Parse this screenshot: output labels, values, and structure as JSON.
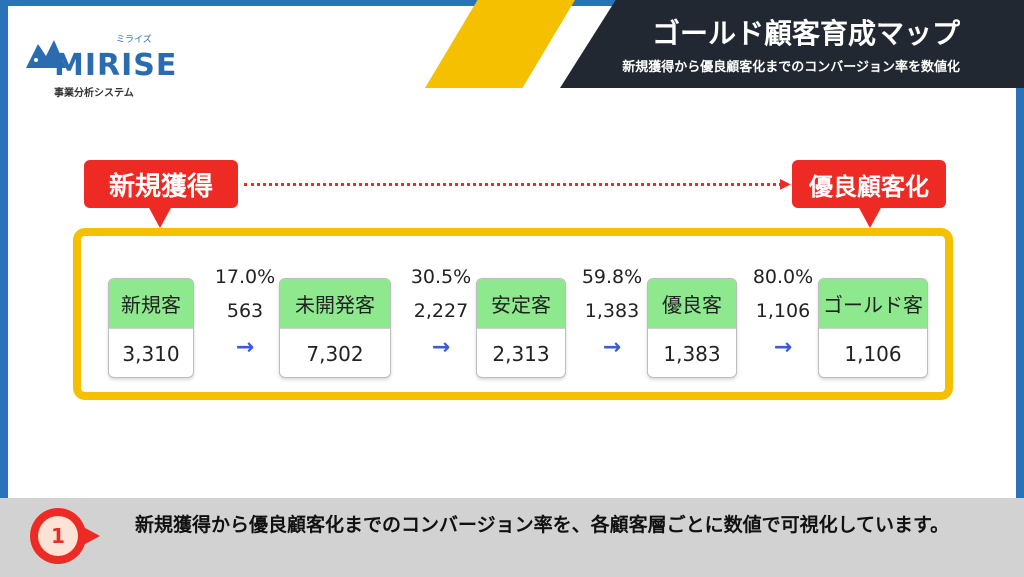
{
  "logo": {
    "name": "MIRISE",
    "kana": "ミライズ",
    "subtitle": "事業分析システム"
  },
  "header": {
    "title": "ゴールド顧客育成マップ",
    "subtitle": "新規獲得から優良顧客化までのコンバージョン率を数値化"
  },
  "callouts": {
    "start": "新規獲得",
    "end": "優良顧客化"
  },
  "stages": [
    {
      "label": "新規客",
      "value": "3,310"
    },
    {
      "label": "未開発客",
      "value": "7,302"
    },
    {
      "label": "安定客",
      "value": "2,313"
    },
    {
      "label": "優良客",
      "value": "1,383"
    },
    {
      "label": "ゴールド客",
      "value": "1,106"
    }
  ],
  "conversions": [
    {
      "rate": "17.0%",
      "count": "563",
      "arrow": "→"
    },
    {
      "rate": "30.5%",
      "count": "2,227",
      "arrow": "→"
    },
    {
      "rate": "59.8%",
      "count": "1,383",
      "arrow": "→"
    },
    {
      "rate": "80.0%",
      "count": "1,106",
      "arrow": "→"
    }
  ],
  "footer": {
    "badge_number": "1",
    "text": "新規獲得から優良顧客化までのコンバージョン率を、各顧客層ごとに数値で可視化しています。"
  },
  "colors": {
    "frame": "#2a73b8",
    "accent_yellow": "#f5c000",
    "header_dark": "#222831",
    "callout_red": "#ee2a24",
    "stage_green": "#8ee88e",
    "arrow_blue": "#3b5bdb"
  }
}
